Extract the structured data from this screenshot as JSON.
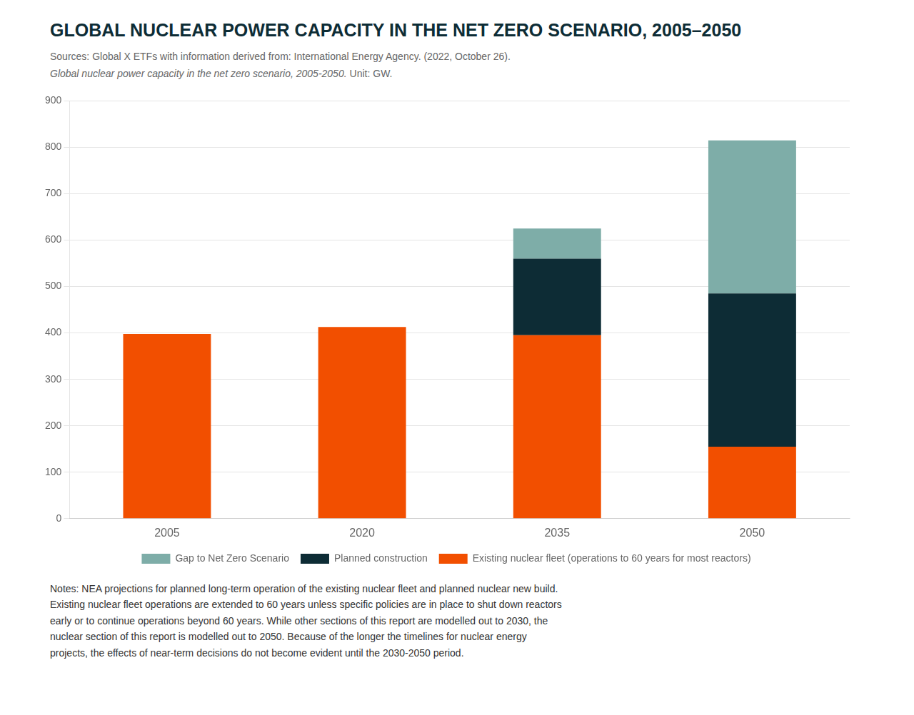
{
  "chart_data": {
    "type": "bar",
    "title": "GLOBAL NUCLEAR POWER CAPACITY IN THE NET ZERO SCENARIO, 2005–2050",
    "categories": [
      "2005",
      "2020",
      "2035",
      "2050"
    ],
    "series": [
      {
        "name": "Existing nuclear fleet (operations to 60 years for most reactors)",
        "color": "#F24F00",
        "values": [
          398,
          413,
          395,
          155
        ]
      },
      {
        "name": "Planned construction",
        "color": "#0D2C35",
        "values": [
          0,
          0,
          165,
          330
        ]
      },
      {
        "name": "Gap to Net Zero Scenario",
        "color": "#7EADA8",
        "values": [
          0,
          0,
          65,
          330
        ]
      }
    ],
    "stacked": true,
    "ylim": [
      0,
      900
    ],
    "yticks": [
      0,
      100,
      200,
      300,
      400,
      500,
      600,
      700,
      800,
      900
    ],
    "grid": true,
    "legend": "bottom",
    "annotations": [
      "Sources: Global X ETFs with information derived from: International Energy Agency. (2022, October 26).",
      "Global nuclear power capacity in the net zero scenario, 2005-2050.",
      "Unit: GW.",
      "Notes: NEA projections for planned long-term operation of the existing nuclear fleet and planned nuclear new build.\nExisting nuclear fleet operations are extended to 60 years unless specific policies are in place to shut down reactors\nearly or to continue operations beyond 60 years. While other sections of this report are modelled out to 2030, the\nnuclear section of this report is modelled out to 2050. Because of the longer the timelines for nuclear energy\nprojects, the effects of near-term decisions do not become evident until the 2030-2050 period."
    ]
  }
}
